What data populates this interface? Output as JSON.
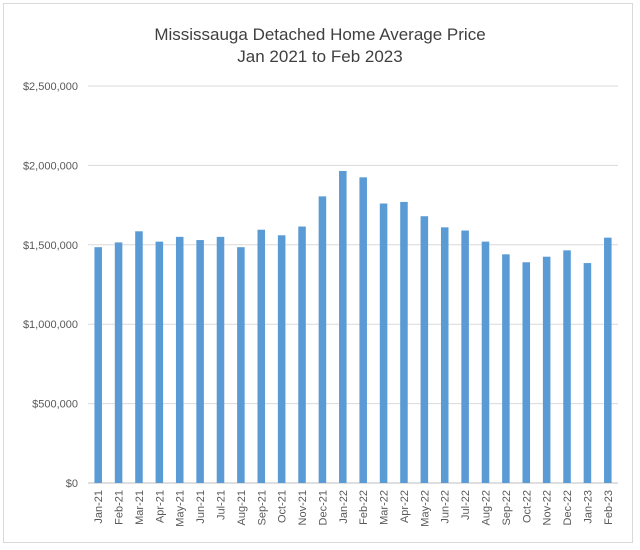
{
  "chart_data": {
    "type": "bar",
    "title": "Mississauga Detached Home Average Price",
    "subtitle": "Jan 2021 to Feb 2023",
    "xlabel": "",
    "ylabel": "",
    "ylim": [
      0,
      2500000
    ],
    "yticks": [
      0,
      500000,
      1000000,
      1500000,
      2000000,
      2500000
    ],
    "ytick_labels": [
      "$0",
      "$500,000",
      "$1,000,000",
      "$1,500,000",
      "$2,000,000",
      "$2,500,000"
    ],
    "grid": true,
    "legend": "none",
    "bar_color": "#5b9bd5",
    "categories": [
      "Jan-21",
      "Feb-21",
      "Mar-21",
      "Apr-21",
      "May-21",
      "Jun-21",
      "Jul-21",
      "Aug-21",
      "Sep-21",
      "Oct-21",
      "Nov-21",
      "Dec-21",
      "Jan-22",
      "Feb-22",
      "Mar-22",
      "Apr-22",
      "May-22",
      "Jun-22",
      "Jul-22",
      "Aug-22",
      "Sep-22",
      "Oct-22",
      "Nov-22",
      "Dec-22",
      "Jan-23",
      "Feb-23"
    ],
    "values": [
      1485000,
      1515000,
      1585000,
      1520000,
      1550000,
      1530000,
      1550000,
      1485000,
      1595000,
      1560000,
      1615000,
      1805000,
      1965000,
      1925000,
      1760000,
      1770000,
      1680000,
      1610000,
      1590000,
      1520000,
      1440000,
      1390000,
      1425000,
      1465000,
      1385000,
      1545000
    ]
  }
}
